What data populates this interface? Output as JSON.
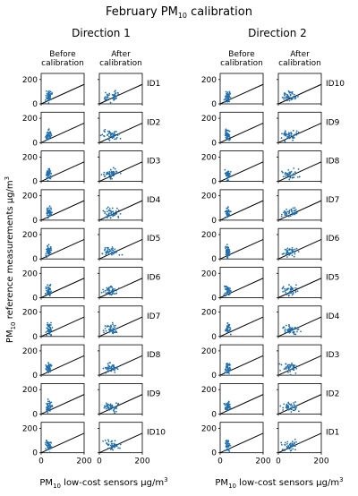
{
  "figure": {
    "title": "February PM",
    "title_sub": "10",
    "title_suffix": " calibration",
    "ylabel_main": "PM",
    "ylabel_sub": "10",
    "ylabel_rest": " reference measurements μg/m",
    "ylabel_sup": "3",
    "xlabel_main": "PM",
    "xlabel_sub": "10",
    "xlabel_rest": " low-cost sensors μg/m",
    "xlabel_sup": "3"
  },
  "colors": {
    "points": "#1f6fae",
    "line": "#000000",
    "axes": "#000000"
  },
  "chart_data": {
    "type": "scatter",
    "panel_groups": [
      {
        "title": "Direction 1",
        "columns": [
          "Before\ncalibration",
          "After\ncalibration"
        ],
        "rows": [
          "ID1",
          "ID2",
          "ID3",
          "ID4",
          "ID5",
          "ID6",
          "ID7",
          "ID8",
          "ID9",
          "ID10"
        ]
      },
      {
        "title": "Direction 2",
        "columns": [
          "Before\ncalibration",
          "After\ncalibration"
        ],
        "rows": [
          "ID10",
          "ID9",
          "ID8",
          "ID7",
          "ID6",
          "ID5",
          "ID4",
          "ID3",
          "ID2",
          "ID1"
        ]
      }
    ],
    "xlim": [
      0,
      200
    ],
    "ylim": [
      0,
      250
    ],
    "xticks": [
      0,
      200
    ],
    "yticks": [
      0,
      200
    ],
    "identity_line": {
      "slope": 0.8,
      "intercept": 0
    },
    "grid": false,
    "points_note": "approximate cluster",
    "before_cluster": {
      "x_center": 35,
      "x_spread": 12,
      "y_center": 60,
      "y_spread": 45
    },
    "after_cluster": {
      "x_center": 55,
      "x_spread": 35,
      "y_center": 60,
      "y_spread": 40
    }
  }
}
